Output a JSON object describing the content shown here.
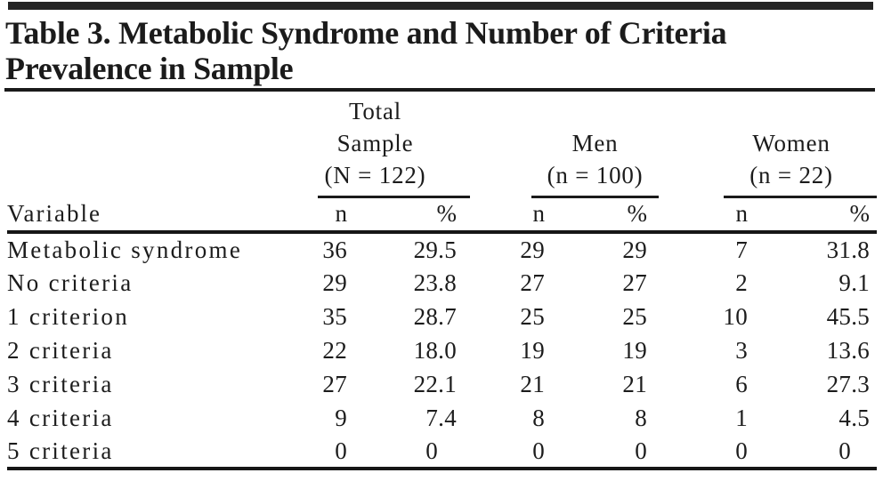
{
  "page": {
    "background": "#ffffff",
    "text_color": "#1c1c1c",
    "rule_color": "#1a1a1a"
  },
  "title": {
    "line1": "Table 3. Metabolic Syndrome and Number of Criteria",
    "line2": "Prevalence in Sample"
  },
  "table": {
    "variable_header": "Variable",
    "groups": [
      {
        "name": "total-sample",
        "label": "Total\nSample\n(N = 122)"
      },
      {
        "name": "men",
        "label": "Men\n(n = 100)"
      },
      {
        "name": "women",
        "label": "Women\n(n = 22)"
      }
    ],
    "subheaders": [
      "n",
      "%",
      "n",
      "%",
      "n",
      "%"
    ],
    "rows": [
      {
        "variable": "Metabolic syndrome",
        "values": [
          "36",
          "29.5",
          "29",
          "29",
          "7",
          "31.8"
        ]
      },
      {
        "variable": "No criteria",
        "values": [
          "29",
          "23.8",
          "27",
          "27",
          "2",
          "9.1"
        ]
      },
      {
        "variable": "1 criterion",
        "values": [
          "35",
          "28.7",
          "25",
          "25",
          "10",
          "45.5"
        ]
      },
      {
        "variable": "2 criteria",
        "values": [
          "22",
          "18.0",
          "19",
          "19",
          "3",
          "13.6"
        ]
      },
      {
        "variable": "3 criteria",
        "values": [
          "27",
          "22.1",
          "21",
          "21",
          "6",
          "27.3"
        ]
      },
      {
        "variable": "4 criteria",
        "values": [
          "9",
          "7.4",
          "8",
          "8",
          "1",
          "4.5"
        ]
      },
      {
        "variable": "5 criteria",
        "values": [
          "0",
          "0",
          "0",
          "0",
          "0",
          "0"
        ]
      }
    ]
  }
}
